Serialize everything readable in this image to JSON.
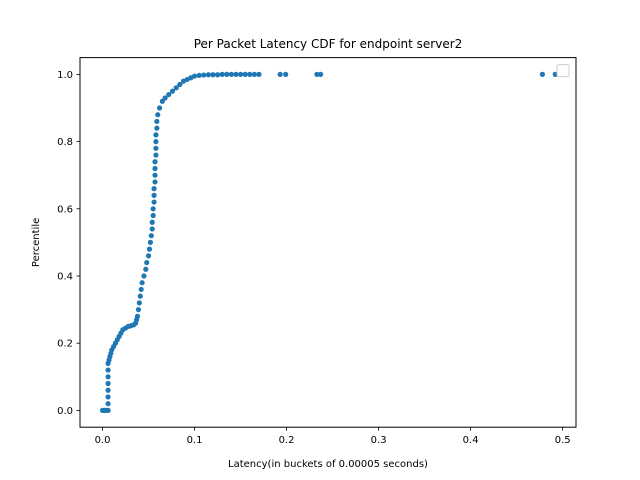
{
  "chart_data": {
    "type": "scatter",
    "title": "Per Packet Latency CDF for endpoint server2",
    "xlabel": "Latency(in buckets of 0.00005 seconds)",
    "ylabel": "Percentile",
    "xlim": [
      -0.0245,
      0.5145
    ],
    "ylim": [
      -0.05,
      1.05
    ],
    "xticks": [
      0.0,
      0.1,
      0.2,
      0.3,
      0.4,
      0.5
    ],
    "xtick_labels": [
      "0.0",
      "0.1",
      "0.2",
      "0.3",
      "0.4",
      "0.5"
    ],
    "yticks": [
      0.0,
      0.2,
      0.4,
      0.6,
      0.8,
      1.0
    ],
    "ytick_labels": [
      "0.0",
      "0.2",
      "0.4",
      "0.6",
      "0.8",
      "1.0"
    ],
    "grid": false,
    "legend": "top-right, empty",
    "marker_color": "#1f77b4",
    "series": [
      {
        "points": [
          [
            0.0,
            0.0
          ],
          [
            0.002,
            0.0
          ],
          [
            0.004,
            0.0
          ],
          [
            0.006,
            0.0
          ],
          [
            0.006,
            0.02
          ],
          [
            0.006,
            0.04
          ],
          [
            0.006,
            0.06
          ],
          [
            0.006,
            0.08
          ],
          [
            0.006,
            0.1
          ],
          [
            0.006,
            0.12
          ],
          [
            0.006,
            0.14
          ],
          [
            0.007,
            0.15
          ],
          [
            0.008,
            0.16
          ],
          [
            0.009,
            0.17
          ],
          [
            0.01,
            0.18
          ],
          [
            0.012,
            0.19
          ],
          [
            0.014,
            0.2
          ],
          [
            0.016,
            0.21
          ],
          [
            0.018,
            0.22
          ],
          [
            0.02,
            0.23
          ],
          [
            0.022,
            0.24
          ],
          [
            0.025,
            0.245
          ],
          [
            0.028,
            0.25
          ],
          [
            0.031,
            0.252
          ],
          [
            0.034,
            0.255
          ],
          [
            0.036,
            0.26
          ],
          [
            0.037,
            0.27
          ],
          [
            0.038,
            0.28
          ],
          [
            0.039,
            0.3
          ],
          [
            0.04,
            0.32
          ],
          [
            0.041,
            0.34
          ],
          [
            0.042,
            0.36
          ],
          [
            0.043,
            0.38
          ],
          [
            0.045,
            0.4
          ],
          [
            0.047,
            0.42
          ],
          [
            0.048,
            0.44
          ],
          [
            0.05,
            0.46
          ],
          [
            0.051,
            0.48
          ],
          [
            0.052,
            0.5
          ],
          [
            0.053,
            0.52
          ],
          [
            0.054,
            0.54
          ],
          [
            0.054,
            0.56
          ],
          [
            0.055,
            0.58
          ],
          [
            0.055,
            0.6
          ],
          [
            0.056,
            0.62
          ],
          [
            0.056,
            0.64
          ],
          [
            0.056,
            0.66
          ],
          [
            0.057,
            0.68
          ],
          [
            0.057,
            0.7
          ],
          [
            0.057,
            0.72
          ],
          [
            0.057,
            0.74
          ],
          [
            0.058,
            0.76
          ],
          [
            0.058,
            0.78
          ],
          [
            0.058,
            0.8
          ],
          [
            0.058,
            0.82
          ],
          [
            0.059,
            0.84
          ],
          [
            0.059,
            0.86
          ],
          [
            0.06,
            0.88
          ],
          [
            0.062,
            0.9
          ],
          [
            0.065,
            0.92
          ],
          [
            0.068,
            0.93
          ],
          [
            0.072,
            0.94
          ],
          [
            0.076,
            0.95
          ],
          [
            0.08,
            0.96
          ],
          [
            0.084,
            0.97
          ],
          [
            0.088,
            0.98
          ],
          [
            0.092,
            0.985
          ],
          [
            0.096,
            0.99
          ],
          [
            0.1,
            0.995
          ],
          [
            0.105,
            0.997
          ],
          [
            0.11,
            0.998
          ],
          [
            0.115,
            0.999
          ],
          [
            0.12,
            0.999
          ],
          [
            0.125,
            0.999
          ],
          [
            0.13,
            1.0
          ],
          [
            0.135,
            1.0
          ],
          [
            0.14,
            1.0
          ],
          [
            0.145,
            1.0
          ],
          [
            0.15,
            1.0
          ],
          [
            0.155,
            1.0
          ],
          [
            0.16,
            1.0
          ],
          [
            0.165,
            1.0
          ],
          [
            0.17,
            1.0
          ],
          [
            0.193,
            1.0
          ],
          [
            0.199,
            1.0
          ],
          [
            0.233,
            1.0
          ],
          [
            0.237,
            1.0
          ],
          [
            0.478,
            1.0
          ],
          [
            0.492,
            1.0
          ]
        ]
      }
    ]
  }
}
